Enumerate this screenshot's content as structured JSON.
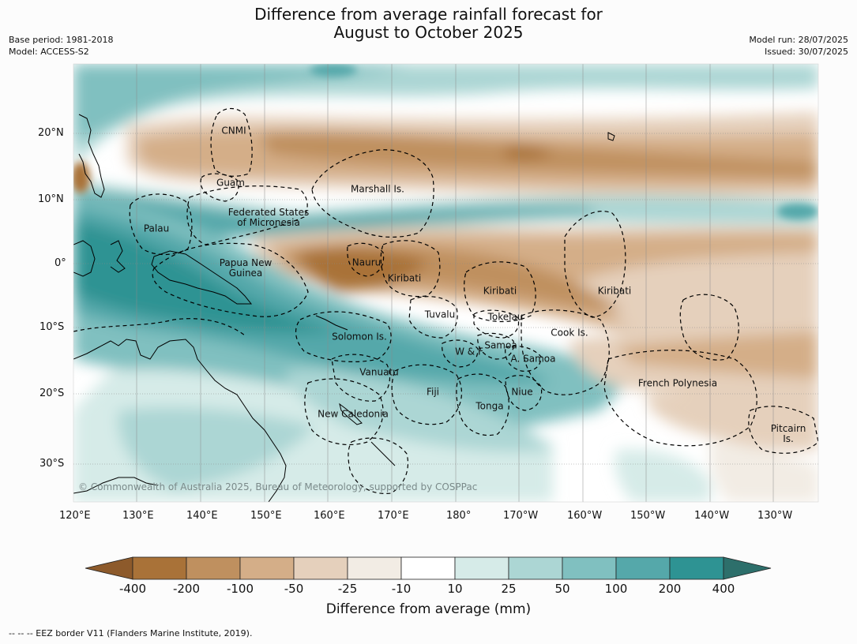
{
  "title_line1": "Difference from average rainfall forecast for",
  "title_line2": "August to October 2025",
  "meta_left": {
    "base_period": "Base period: 1981-2018",
    "model": "Model: ACCESS-S2"
  },
  "meta_right": {
    "model_run": "Model run: 28/07/2025",
    "issued": "Issued: 30/07/2025"
  },
  "lon_ticks": [
    "120°E",
    "130°E",
    "140°E",
    "150°E",
    "160°E",
    "170°E",
    "180°",
    "170°W",
    "160°W",
    "150°W",
    "140°W",
    "130°W"
  ],
  "lat_ticks": [
    "20°N",
    "10°N",
    "0°",
    "10°S",
    "20°S",
    "30°S"
  ],
  "regions": {
    "cnmi": "CNMI",
    "guam": "Guam",
    "marshall": "Marshall Is.",
    "fsm_1": "Federated States",
    "fsm_2": "of Micronesia",
    "palau": "Palau",
    "png_1": "Papua New",
    "png_2": "Guinea",
    "nauru": "Nauru",
    "kiribati_w": "Kiribati",
    "kiribati_c": "Kiribati",
    "kiribati_e": "Kiribati",
    "tuvalu": "Tuvalu",
    "tokelau": "Tokelau",
    "cook": "Cook Is.",
    "solomon": "Solomon Is.",
    "samoa": "Samoa",
    "wf": "W & F",
    "asamoa": "A. Samoa",
    "vanuatu": "Vanuatu",
    "fiji": "Fiji",
    "niue": "Niue",
    "tonga": "Tonga",
    "newcal": "New Caledonia",
    "frpoly": "French Polynesia",
    "pitcairn_1": "Pitcairn",
    "pitcairn_2": "Is."
  },
  "copyright": "© Commonwealth of Australia 2025, Bureau of Meteorology, supported by COSPPac",
  "colorbar": {
    "labels": [
      "-400",
      "-200",
      "-100",
      "-50",
      "-25",
      "-10",
      "10",
      "25",
      "50",
      "100",
      "200",
      "400"
    ],
    "colors": [
      "#8d5a2b",
      "#a97238",
      "#bf905f",
      "#d4ae88",
      "#e5d0bc",
      "#f2ece4",
      "#ffffff",
      "#d6ebe8",
      "#acd6d4",
      "#80c0c0",
      "#55a8aa",
      "#2e9393",
      "#2d6f6b"
    ],
    "title": "Difference from average (mm)"
  },
  "footnote": "-- -- -- EEZ border V11 (Flanders Marine Institute, 2019)."
}
